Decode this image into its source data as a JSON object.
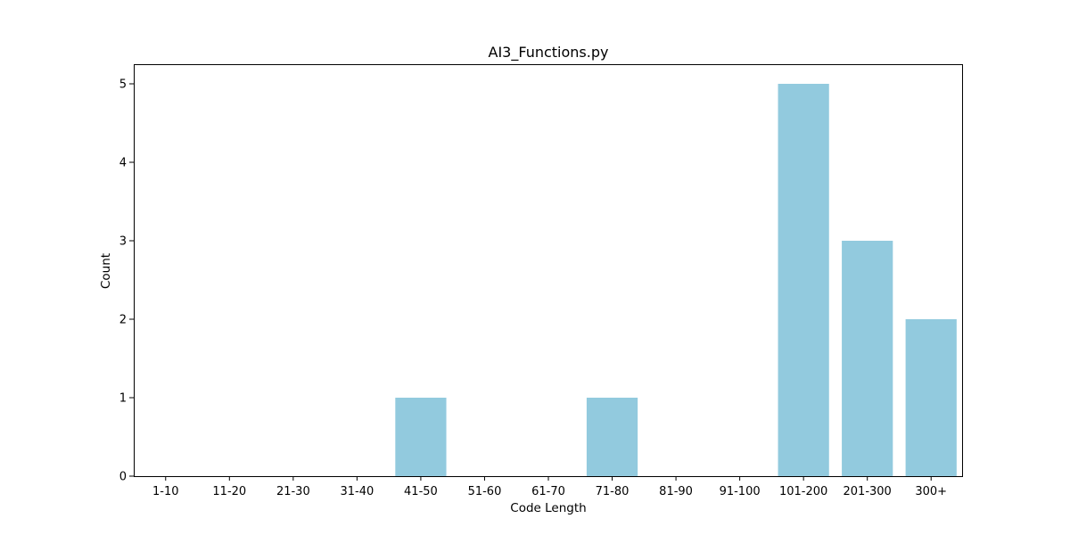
{
  "chart_data": {
    "type": "bar",
    "title": "AI3_Functions.py",
    "xlabel": "Code Length",
    "ylabel": "Count",
    "categories": [
      "1-10",
      "11-20",
      "21-30",
      "31-40",
      "41-50",
      "51-60",
      "61-70",
      "71-80",
      "81-90",
      "91-100",
      "101-200",
      "201-300",
      "300+"
    ],
    "values": [
      0,
      0,
      0,
      0,
      1,
      0,
      0,
      1,
      0,
      0,
      5,
      3,
      2
    ],
    "yticks": [
      0,
      1,
      2,
      3,
      4,
      5
    ],
    "ylim": [
      0,
      5.25
    ],
    "grid": false,
    "legend": "none",
    "bar_color": "#92cade"
  }
}
